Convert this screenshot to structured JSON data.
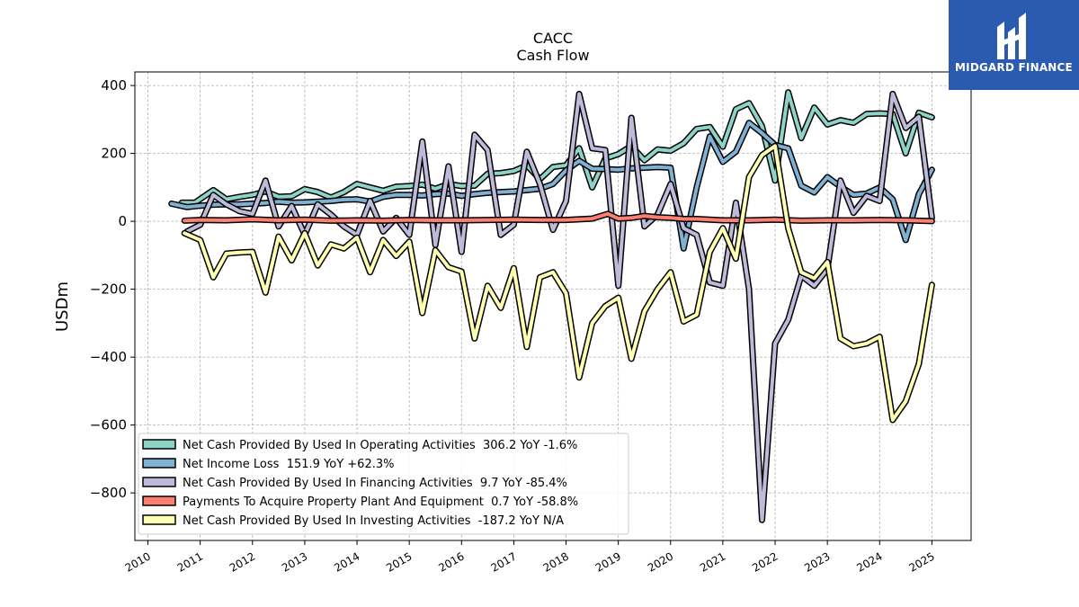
{
  "logo": {
    "text": "MIDGARD FINANCE",
    "bg_color": "#2b5bb0",
    "icon": "midgard-logo-icon"
  },
  "chart_data": {
    "type": "line",
    "title": "CACC",
    "subtitle": "Cash Flow",
    "xlabel": "",
    "ylabel": "USDm",
    "xlim": [
      2009.75,
      2025.75
    ],
    "ylim": [
      -940,
      440
    ],
    "grid": true,
    "legend_position": "lower-left",
    "y_ticks": [
      400,
      200,
      0,
      -200,
      -400,
      -600,
      -800
    ],
    "y_tick_labels": [
      "400",
      "200",
      "0",
      "−200",
      "−400",
      "−600",
      "−800"
    ],
    "x_ticks": [
      2010,
      2011,
      2012,
      2013,
      2014,
      2015,
      2016,
      2017,
      2018,
      2019,
      2020,
      2021,
      2022,
      2023,
      2024,
      2025
    ],
    "x_tick_labels": [
      "2010",
      "2011",
      "2012",
      "2013",
      "2014",
      "2015",
      "2016",
      "2017",
      "2018",
      "2019",
      "2020",
      "2021",
      "2022",
      "2023",
      "2024",
      "2025"
    ],
    "series": [
      {
        "name": "Net Cash Provided By Used In Operating Activities  306.2 YoY -1.6%",
        "color": "#8dd3c7",
        "points": [
          [
            2010.65,
            55
          ],
          [
            2010.9,
            55
          ],
          [
            2011.25,
            92
          ],
          [
            2011.5,
            65
          ],
          [
            2011.75,
            72
          ],
          [
            2012.0,
            78
          ],
          [
            2012.25,
            88
          ],
          [
            2012.5,
            72
          ],
          [
            2012.75,
            74
          ],
          [
            2013.0,
            95
          ],
          [
            2013.25,
            86
          ],
          [
            2013.5,
            70
          ],
          [
            2013.75,
            86
          ],
          [
            2014.0,
            110
          ],
          [
            2014.25,
            100
          ],
          [
            2014.5,
            90
          ],
          [
            2014.75,
            102
          ],
          [
            2015.0,
            104
          ],
          [
            2015.25,
            108
          ],
          [
            2015.5,
            96
          ],
          [
            2015.75,
            110
          ],
          [
            2016.0,
            104
          ],
          [
            2016.25,
            105
          ],
          [
            2016.5,
            140
          ],
          [
            2016.75,
            142
          ],
          [
            2017.0,
            148
          ],
          [
            2017.25,
            165
          ],
          [
            2017.5,
            124
          ],
          [
            2017.75,
            160
          ],
          [
            2018.0,
            165
          ],
          [
            2018.25,
            215
          ],
          [
            2018.5,
            100
          ],
          [
            2018.75,
            185
          ],
          [
            2019.0,
            198
          ],
          [
            2019.25,
            222
          ],
          [
            2019.5,
            180
          ],
          [
            2019.75,
            212
          ],
          [
            2020.0,
            208
          ],
          [
            2020.25,
            230
          ],
          [
            2020.5,
            272
          ],
          [
            2020.75,
            278
          ],
          [
            2021.0,
            220
          ],
          [
            2021.25,
            330
          ],
          [
            2021.5,
            348
          ],
          [
            2021.75,
            280
          ],
          [
            2022.0,
            120
          ],
          [
            2022.25,
            380
          ],
          [
            2022.5,
            245
          ],
          [
            2022.75,
            335
          ],
          [
            2023.0,
            285
          ],
          [
            2023.25,
            298
          ],
          [
            2023.5,
            290
          ],
          [
            2023.75,
            316
          ],
          [
            2024.0,
            318
          ],
          [
            2024.25,
            316
          ],
          [
            2024.5,
            200
          ],
          [
            2024.75,
            320
          ],
          [
            2025.0,
            306.2
          ]
        ]
      },
      {
        "name": "Net Income Loss  151.9 YoY +62.3%",
        "color": "#80b1d3",
        "points": [
          [
            2010.45,
            52
          ],
          [
            2010.75,
            42
          ],
          [
            2011.0,
            46
          ],
          [
            2011.25,
            49
          ],
          [
            2011.5,
            50
          ],
          [
            2011.75,
            50
          ],
          [
            2012.0,
            52
          ],
          [
            2012.25,
            54
          ],
          [
            2012.5,
            58
          ],
          [
            2012.75,
            55
          ],
          [
            2013.0,
            56
          ],
          [
            2013.25,
            58
          ],
          [
            2013.5,
            60
          ],
          [
            2013.75,
            64
          ],
          [
            2014.0,
            65
          ],
          [
            2014.25,
            58
          ],
          [
            2014.5,
            72
          ],
          [
            2014.75,
            78
          ],
          [
            2015.0,
            78
          ],
          [
            2015.25,
            76
          ],
          [
            2015.5,
            80
          ],
          [
            2015.75,
            82
          ],
          [
            2016.0,
            75
          ],
          [
            2016.25,
            80
          ],
          [
            2016.5,
            84
          ],
          [
            2016.75,
            86
          ],
          [
            2017.0,
            88
          ],
          [
            2017.25,
            92
          ],
          [
            2017.5,
            96
          ],
          [
            2017.75,
            110
          ],
          [
            2018.0,
            150
          ],
          [
            2018.25,
            178
          ],
          [
            2018.5,
            155
          ],
          [
            2018.75,
            154
          ],
          [
            2019.0,
            152
          ],
          [
            2019.25,
            156
          ],
          [
            2019.5,
            158
          ],
          [
            2019.75,
            160
          ],
          [
            2020.0,
            158
          ],
          [
            2020.25,
            -80
          ],
          [
            2020.5,
            100
          ],
          [
            2020.75,
            250
          ],
          [
            2021.0,
            175
          ],
          [
            2021.25,
            205
          ],
          [
            2021.5,
            290
          ],
          [
            2021.75,
            260
          ],
          [
            2022.0,
            225
          ],
          [
            2022.25,
            215
          ],
          [
            2022.5,
            105
          ],
          [
            2022.75,
            85
          ],
          [
            2023.0,
            130
          ],
          [
            2023.25,
            102
          ],
          [
            2023.5,
            78
          ],
          [
            2023.75,
            82
          ],
          [
            2024.0,
            100
          ],
          [
            2024.25,
            65
          ],
          [
            2024.5,
            -55
          ],
          [
            2024.75,
            80
          ],
          [
            2025.0,
            151.9
          ]
        ]
      },
      {
        "name": "Net Cash Provided By Used In Financing Activities  9.7 YoY -85.4%",
        "color": "#bebada",
        "points": [
          [
            2010.75,
            -30
          ],
          [
            2011.0,
            -10
          ],
          [
            2011.25,
            78
          ],
          [
            2011.5,
            50
          ],
          [
            2011.75,
            30
          ],
          [
            2012.0,
            22
          ],
          [
            2012.25,
            120
          ],
          [
            2012.5,
            -15
          ],
          [
            2012.75,
            45
          ],
          [
            2013.0,
            -40
          ],
          [
            2013.25,
            50
          ],
          [
            2013.5,
            20
          ],
          [
            2013.75,
            -15
          ],
          [
            2014.0,
            -40
          ],
          [
            2014.25,
            60
          ],
          [
            2014.5,
            -30
          ],
          [
            2014.75,
            10
          ],
          [
            2015.0,
            -40
          ],
          [
            2015.25,
            235
          ],
          [
            2015.5,
            -70
          ],
          [
            2015.75,
            162
          ],
          [
            2016.0,
            -90
          ],
          [
            2016.25,
            255
          ],
          [
            2016.5,
            210
          ],
          [
            2016.75,
            -40
          ],
          [
            2017.0,
            -10
          ],
          [
            2017.25,
            205
          ],
          [
            2017.5,
            110
          ],
          [
            2017.75,
            -25
          ],
          [
            2018.0,
            60
          ],
          [
            2018.25,
            375
          ],
          [
            2018.5,
            215
          ],
          [
            2018.75,
            210
          ],
          [
            2019.0,
            -190
          ],
          [
            2019.25,
            305
          ],
          [
            2019.5,
            -15
          ],
          [
            2019.75,
            20
          ],
          [
            2020.0,
            110
          ],
          [
            2020.25,
            -20
          ],
          [
            2020.5,
            -40
          ],
          [
            2020.75,
            -180
          ],
          [
            2021.0,
            -190
          ],
          [
            2021.25,
            55
          ],
          [
            2021.5,
            -200
          ],
          [
            2021.75,
            -880
          ],
          [
            2022.0,
            -360
          ],
          [
            2022.25,
            -290
          ],
          [
            2022.5,
            -160
          ],
          [
            2022.75,
            -190
          ],
          [
            2023.0,
            -140
          ],
          [
            2023.25,
            120
          ],
          [
            2023.5,
            25
          ],
          [
            2023.75,
            75
          ],
          [
            2024.0,
            60
          ],
          [
            2024.25,
            375
          ],
          [
            2024.5,
            275
          ],
          [
            2024.75,
            308
          ],
          [
            2025.0,
            9.7
          ]
        ]
      },
      {
        "name": "Payments To Acquire Property Plant And Equipment  0.7 YoY -58.8%",
        "color": "#fb8072",
        "points": [
          [
            2010.7,
            2
          ],
          [
            2011.0,
            4
          ],
          [
            2011.5,
            3
          ],
          [
            2012.0,
            6
          ],
          [
            2012.5,
            3
          ],
          [
            2013.0,
            5
          ],
          [
            2013.5,
            2
          ],
          [
            2014.0,
            3
          ],
          [
            2014.5,
            2
          ],
          [
            2015.0,
            4
          ],
          [
            2015.5,
            3
          ],
          [
            2016.0,
            3
          ],
          [
            2016.5,
            4
          ],
          [
            2017.0,
            5
          ],
          [
            2017.5,
            4
          ],
          [
            2018.0,
            4
          ],
          [
            2018.5,
            8
          ],
          [
            2018.8,
            22
          ],
          [
            2019.0,
            8
          ],
          [
            2019.25,
            10
          ],
          [
            2019.5,
            16
          ],
          [
            2019.75,
            12
          ],
          [
            2020.0,
            10
          ],
          [
            2020.25,
            7
          ],
          [
            2020.5,
            7
          ],
          [
            2020.75,
            5
          ],
          [
            2021.0,
            3
          ],
          [
            2021.5,
            3
          ],
          [
            2022.0,
            5
          ],
          [
            2022.5,
            2
          ],
          [
            2023.0,
            3
          ],
          [
            2023.5,
            3
          ],
          [
            2024.0,
            4
          ],
          [
            2024.5,
            3
          ],
          [
            2025.0,
            0.7
          ]
        ]
      },
      {
        "name": "Net Cash Provided By Used In Investing Activities  -187.2 YoY N/A",
        "color": "#ffffb3",
        "points": [
          [
            2010.7,
            -35
          ],
          [
            2011.0,
            -55
          ],
          [
            2011.25,
            -165
          ],
          [
            2011.5,
            -95
          ],
          [
            2011.75,
            -92
          ],
          [
            2012.0,
            -90
          ],
          [
            2012.25,
            -210
          ],
          [
            2012.5,
            -45
          ],
          [
            2012.75,
            -115
          ],
          [
            2013.0,
            -35
          ],
          [
            2013.25,
            -130
          ],
          [
            2013.5,
            -68
          ],
          [
            2013.75,
            -80
          ],
          [
            2014.0,
            -48
          ],
          [
            2014.25,
            -150
          ],
          [
            2014.5,
            -55
          ],
          [
            2014.75,
            -102
          ],
          [
            2015.0,
            -60
          ],
          [
            2015.25,
            -270
          ],
          [
            2015.5,
            -85
          ],
          [
            2015.75,
            -135
          ],
          [
            2016.0,
            -148
          ],
          [
            2016.25,
            -345
          ],
          [
            2016.5,
            -190
          ],
          [
            2016.75,
            -255
          ],
          [
            2017.0,
            -138
          ],
          [
            2017.25,
            -370
          ],
          [
            2017.5,
            -165
          ],
          [
            2017.75,
            -150
          ],
          [
            2018.0,
            -212
          ],
          [
            2018.25,
            -460
          ],
          [
            2018.5,
            -300
          ],
          [
            2018.75,
            -250
          ],
          [
            2019.0,
            -225
          ],
          [
            2019.25,
            -405
          ],
          [
            2019.5,
            -265
          ],
          [
            2019.75,
            -200
          ],
          [
            2020.0,
            -150
          ],
          [
            2020.25,
            -295
          ],
          [
            2020.5,
            -275
          ],
          [
            2020.75,
            -90
          ],
          [
            2021.0,
            -20
          ],
          [
            2021.25,
            -110
          ],
          [
            2021.5,
            130
          ],
          [
            2021.75,
            195
          ],
          [
            2022.0,
            222
          ],
          [
            2022.25,
            -20
          ],
          [
            2022.5,
            -150
          ],
          [
            2022.75,
            -168
          ],
          [
            2023.0,
            -120
          ],
          [
            2023.25,
            -345
          ],
          [
            2023.5,
            -368
          ],
          [
            2023.75,
            -360
          ],
          [
            2024.0,
            -340
          ],
          [
            2024.25,
            -585
          ],
          [
            2024.5,
            -530
          ],
          [
            2024.75,
            -420
          ],
          [
            2025.0,
            -187.2
          ]
        ]
      }
    ]
  }
}
